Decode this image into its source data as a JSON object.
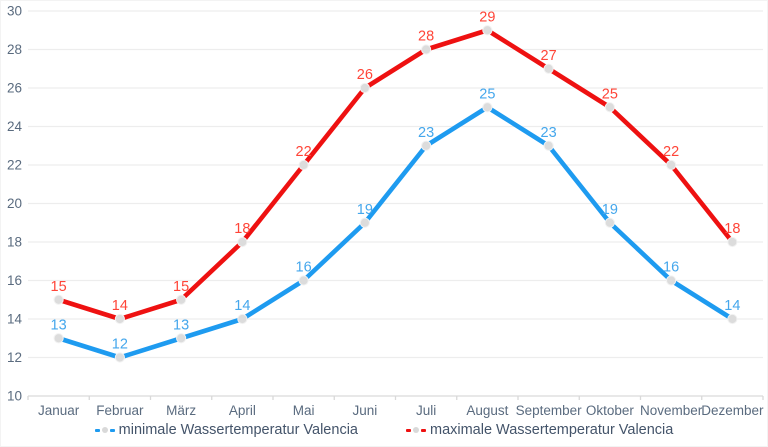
{
  "chart_data": {
    "type": "line",
    "title": "",
    "xlabel": "",
    "ylabel": "",
    "categories": [
      "Januar",
      "Februar",
      "März",
      "April",
      "Mai",
      "Juni",
      "Juli",
      "August",
      "September",
      "Oktober",
      "November",
      "Dezember"
    ],
    "series": [
      {
        "name": "minimale Wassertemperatur Valencia",
        "values": [
          13,
          12,
          13,
          14,
          16,
          19,
          23,
          25,
          23,
          19,
          16,
          14
        ],
        "color": "#1e9bf0",
        "label_color": "#45a7ec"
      },
      {
        "name": "maximale Wassertemperatur Valencia",
        "values": [
          15,
          14,
          15,
          18,
          22,
          26,
          28,
          29,
          27,
          25,
          22,
          18
        ],
        "color": "#ee1111",
        "label_color": "#ff4538"
      }
    ],
    "ylim": [
      10,
      30
    ],
    "yticks": [
      10,
      12,
      14,
      16,
      18,
      20,
      22,
      24,
      26,
      28,
      30
    ],
    "grid": true,
    "legend_position": "bottom",
    "colors": {
      "background": "#ffffff",
      "gridline": "#ededed",
      "axis_line": "#d9d9d9",
      "axis_text": "#5a6b7f",
      "legend_text": "#44546a",
      "marker_fill": "#dcdcdc",
      "marker_stroke": "#f2f2f2"
    }
  }
}
